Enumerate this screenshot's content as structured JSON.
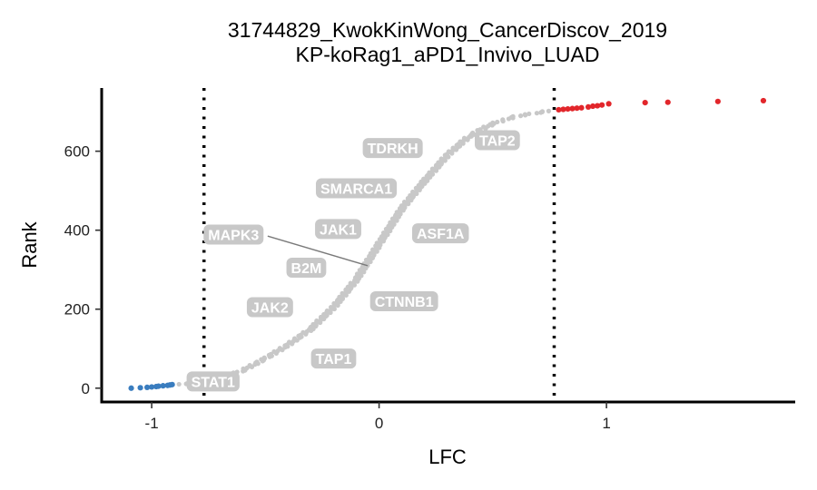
{
  "chart_data": {
    "type": "scatter",
    "title_lines": [
      "31744829_KwokKinWong_CancerDiscov_2019",
      "KP-koRag1_aPD1_Invivo_LUAD"
    ],
    "xlabel": "LFC",
    "ylabel": "Rank",
    "xlim": [
      -1.22,
      1.83
    ],
    "ylim": [
      -35,
      760
    ],
    "x_ticks": [
      -1,
      0,
      1
    ],
    "x_tick_labels": [
      "-1",
      "0",
      "1"
    ],
    "y_ticks": [
      0,
      200,
      400,
      600
    ],
    "y_tick_labels": [
      "0",
      "200",
      "400",
      "600"
    ],
    "thresholds": [
      -0.77,
      0.77
    ],
    "grid": false,
    "colors": {
      "depleted": "#3a7dbf",
      "enriched": "#e2262b",
      "neutral": "#c8c8c8",
      "label_box": "#c8c8c8",
      "label_text": "#ffffff",
      "leader_line": "#7a7a7a"
    },
    "series": [
      {
        "group": "depleted",
        "x": [
          -1.09,
          -1.05,
          -1.02,
          -1.0,
          -0.98,
          -0.97,
          -0.95,
          -0.93,
          -0.92,
          -0.91
        ],
        "y": [
          0,
          1,
          2,
          3,
          4,
          5,
          6,
          7,
          8,
          9
        ]
      },
      {
        "group": "neutral",
        "curve": [
          [
            -0.88,
            10
          ],
          [
            -0.8,
            14
          ],
          [
            -0.7,
            25
          ],
          [
            -0.6,
            45
          ],
          [
            -0.5,
            75
          ],
          [
            -0.4,
            110
          ],
          [
            -0.3,
            150
          ],
          [
            -0.2,
            205
          ],
          [
            -0.1,
            275
          ],
          [
            0.0,
            365
          ],
          [
            0.1,
            455
          ],
          [
            0.2,
            525
          ],
          [
            0.3,
            590
          ],
          [
            0.4,
            640
          ],
          [
            0.5,
            670
          ],
          [
            0.6,
            688
          ],
          [
            0.7,
            698
          ],
          [
            0.76,
            703
          ]
        ]
      },
      {
        "group": "enriched",
        "x": [
          0.79,
          0.81,
          0.83,
          0.85,
          0.87,
          0.89,
          0.92,
          0.94,
          0.96,
          0.98,
          1.01,
          1.17,
          1.27,
          1.49,
          1.69
        ],
        "y": [
          705,
          706,
          707,
          708,
          709,
          710,
          712,
          714,
          715,
          717,
          720,
          723,
          724,
          726,
          728
        ]
      }
    ],
    "gene_labels": [
      {
        "text": "TDRKH",
        "x": 0.06,
        "y": 608
      },
      {
        "text": "TAP2",
        "x": 0.52,
        "y": 628
      },
      {
        "text": "SMARCA1",
        "x": -0.1,
        "y": 506
      },
      {
        "text": "JAK1",
        "x": -0.18,
        "y": 403
      },
      {
        "text": "ASF1A",
        "x": 0.27,
        "y": 392
      },
      {
        "text": "MAPK3",
        "x": -0.64,
        "y": 389
      },
      {
        "text": "B2M",
        "x": -0.32,
        "y": 305
      },
      {
        "text": "CTNNB1",
        "x": 0.11,
        "y": 220
      },
      {
        "text": "JAK2",
        "x": -0.48,
        "y": 205
      },
      {
        "text": "TAP1",
        "x": -0.2,
        "y": 75
      },
      {
        "text": "STAT1",
        "x": -0.73,
        "y": 17
      }
    ],
    "leader_lines": [
      {
        "label": "MAPK3",
        "from": [
          -0.49,
          385
        ],
        "to": [
          -0.05,
          310
        ]
      }
    ]
  }
}
